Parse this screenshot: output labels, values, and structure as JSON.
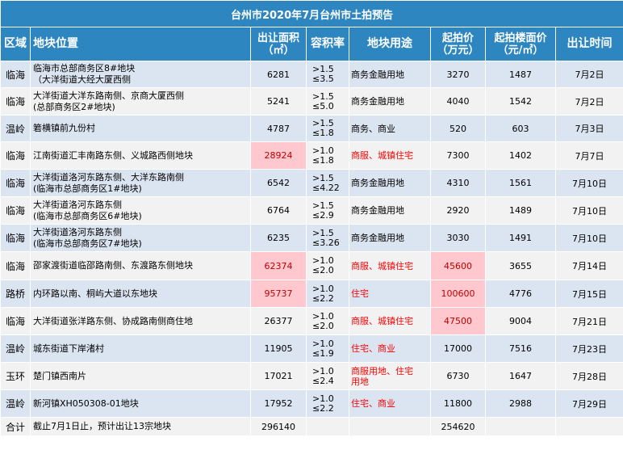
{
  "title": "台州市2020年7月台州市土拍预告",
  "headers": {
    "district": "区域",
    "location": "地块位置",
    "area": "出让面积\n（㎡）",
    "far": "容积率",
    "use": "地块用途",
    "start_price": "起拍价\n（万元）",
    "floor_price": "起拍楼面价\n（元/㎡）",
    "date": "出让时间"
  },
  "rows": [
    {
      "district": "临海",
      "location": "临海市总部商务区8#地块\n（大洋街道大经大厦西侧",
      "area": "6281",
      "far": ">1.5\n≤3.5",
      "use": "商务金融用地",
      "price": "3270",
      "floor": "1487",
      "date": "7月2日"
    },
    {
      "district": "临海",
      "location": "大洋街道大洋东路南侧、京商大厦西侧\n(总部商务区2#地块)",
      "area": "5241",
      "far": ">1.5\n≤5.0",
      "use": "商务金融用地",
      "price": "4040",
      "floor": "1542",
      "date": "7月2日"
    },
    {
      "district": "温岭",
      "location": "箬横镇前九份村",
      "area": "4787",
      "far": ">1.5\n≤1.8",
      "use": "商务、商业",
      "price": "520",
      "floor": "603",
      "date": "7月3日"
    },
    {
      "district": "临海",
      "location": "江南街道汇丰南路东侧、义城路西侧地块",
      "area": "28924",
      "far": ">1.0\n≤1.8",
      "use": "商服、城镇住宅",
      "price": "7300",
      "floor": "1402",
      "date": "7月7日"
    },
    {
      "district": "临海",
      "location": "大洋街道洛河东路东侧、大洋东路南侧\n(临海市总部商务区1#地块)",
      "area": "6542",
      "far": ">1.5\n≤4.22",
      "use": "商务金融用地",
      "price": "4310",
      "floor": "1561",
      "date": "7月10日"
    },
    {
      "district": "临海",
      "location": "大洋街道洛河东路东侧\n(临海市总部商务区6#地块)",
      "area": "6764",
      "far": ">1.5\n≤2.9",
      "use": "商务金融用地",
      "price": "2920",
      "floor": "1489",
      "date": "7月10日"
    },
    {
      "district": "临海",
      "location": "大洋街道洛河东路东侧\n(临海市总部商务区7#地块)",
      "area": "6235",
      "far": ">1.5\n≤3.26",
      "use": "商务金融用地",
      "price": "3030",
      "floor": "1491",
      "date": "7月10日"
    },
    {
      "district": "临海",
      "location": "邵家渡街道临邵路南侧、东渡路东侧地块",
      "area": "62374",
      "far": ">1.0\n≤2.0",
      "use": "商服、城镇住宅",
      "price": "45600",
      "floor": "3655",
      "date": "7月14日"
    },
    {
      "district": "路桥",
      "location": "内环路以南、桐屿大道以东地块",
      "area": "95737",
      "far": ">1.0\n≤2.2",
      "use": "住宅",
      "price": "100600",
      "floor": "4776",
      "date": "7月15日"
    },
    {
      "district": "临海",
      "location": "大洋街道张洋路东侧、协成路南侧商住地",
      "area": "26377",
      "far": ">1.0\n≤2.0",
      "use": "商服、城镇住宅",
      "price": "47500",
      "floor": "9004",
      "date": "7月21日"
    },
    {
      "district": "温岭",
      "location": "城东街道下岸渚村",
      "area": "11905",
      "far": ">1.0\n≤1.9",
      "use": "住宅、商业",
      "price": "17000",
      "floor": "7516",
      "date": "7月23日"
    },
    {
      "district": "玉环",
      "location": "楚门镇西南片",
      "area": "17021",
      "far": ">1.0\n≤2.4",
      "use": "商服用地、住宅\n用地",
      "price": "6730",
      "floor": "1647",
      "date": "7月28日"
    },
    {
      "district": "温岭",
      "location": "新河镇XH050308-01地块",
      "area": "17952",
      "far": ">1.0\n≤2.2",
      "use": "住宅、商业",
      "price": "11800",
      "floor": "2988",
      "date": "7月29日"
    }
  ],
  "total": {
    "label": "合计",
    "note": "截止7月1日止，预计出让13宗地块",
    "area": "296140",
    "price": "254620"
  },
  "colors": {
    "header_bg": "#2e86c1",
    "row_odd": "#dbe5f1",
    "row_even": "#f2f2f2",
    "highlight_bg": "#ffc7ce",
    "highlight_text": "#c00000",
    "red_text": "#ff0000"
  }
}
